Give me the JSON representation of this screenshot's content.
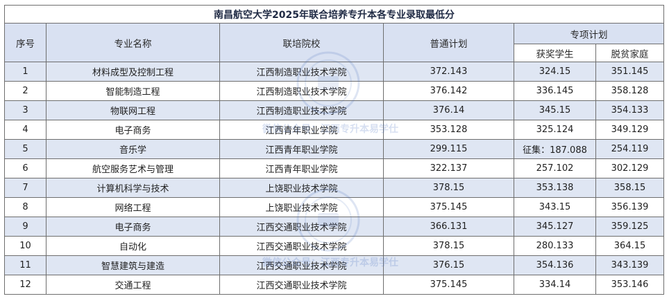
{
  "title": "南昌航空大学2025年联合培养专升本各专业录取最低分",
  "headers": {
    "index": "序号",
    "major": "专业名称",
    "school": "联培院校",
    "regular": "普通计划",
    "special": "专项计划",
    "award": "获奖学生",
    "poverty": "脱贫家庭"
  },
  "rows": [
    {
      "no": "1",
      "major": "材料成型及控制工程",
      "school": "江西制造职业技术学院",
      "regular": "372.143",
      "award": "324.15",
      "poverty": "351.145"
    },
    {
      "no": "2",
      "major": "智能制造工程",
      "school": "江西制造职业技术学院",
      "regular": "376.142",
      "award": "336.145",
      "poverty": "358.128"
    },
    {
      "no": "3",
      "major": "物联网工程",
      "school": "江西制造职业技术学院",
      "regular": "376.14",
      "award": "345.15",
      "poverty": "354.133"
    },
    {
      "no": "4",
      "major": "电子商务",
      "school": "江西青年职业学院",
      "regular": "353.128",
      "award": "325.124",
      "poverty": "349.129"
    },
    {
      "no": "5",
      "major": "音乐学",
      "school": "江西青年职业学院",
      "regular": "299.115",
      "award": "征集：187.088",
      "poverty": "254.119"
    },
    {
      "no": "6",
      "major": "航空服务艺术与管理",
      "school": "江西青年职业学院",
      "regular": "322.137",
      "award": "257.102",
      "poverty": "302.129"
    },
    {
      "no": "7",
      "major": "计算机科学与技术",
      "school": "上饶职业技术学院",
      "regular": "378.15",
      "award": "353.138",
      "poverty": "358.15"
    },
    {
      "no": "8",
      "major": "网络工程",
      "school": "上饶职业技术学院",
      "regular": "375.145",
      "award": "343.15",
      "poverty": "356.139"
    },
    {
      "no": "9",
      "major": "电子商务",
      "school": "江西交通职业技术学院",
      "regular": "366.131",
      "award": "345.127",
      "poverty": "359.125"
    },
    {
      "no": "10",
      "major": "自动化",
      "school": "江西交通职业技术学院",
      "regular": "378.15",
      "award": "280.133",
      "poverty": "364.15"
    },
    {
      "no": "11",
      "major": "智慧建筑与建造",
      "school": "江西交通职业技术学院",
      "regular": "376.15",
      "award": "354.136",
      "poverty": "343.139"
    },
    {
      "no": "12",
      "major": "交通工程",
      "school": "江西交通职业技术学院",
      "regular": "375.145",
      "award": "334.14",
      "poverty": "353.146"
    }
  ],
  "watermark": {
    "text": "微信公众号：江西专升本易学仕",
    "color": "#466ebe"
  }
}
